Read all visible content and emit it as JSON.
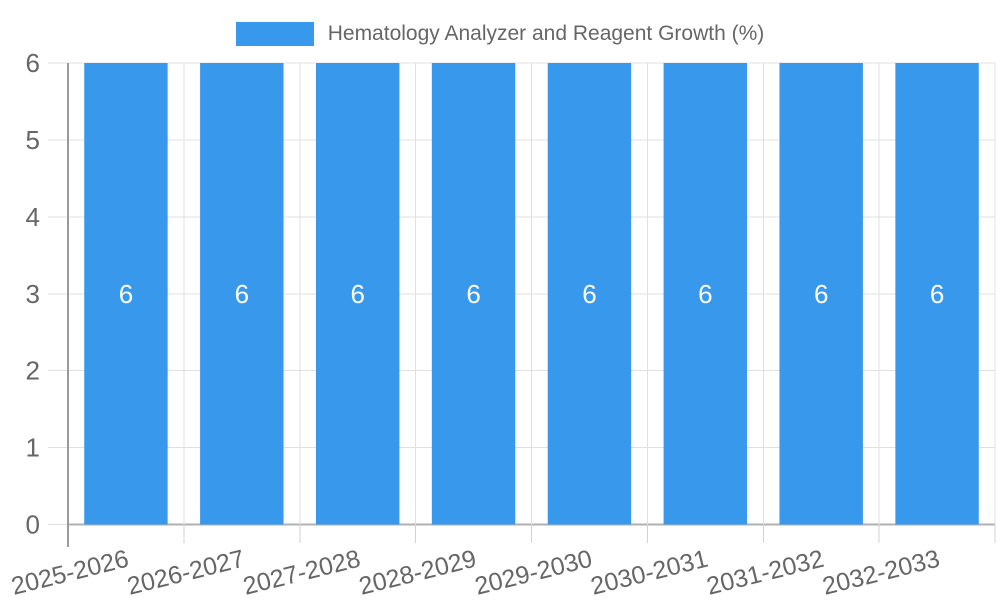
{
  "chart_data": {
    "type": "bar",
    "title": "",
    "legend": {
      "label": "Hematology Analyzer and Reagent Growth (%)",
      "position": "top"
    },
    "categories": [
      "2025-2026",
      "2026-2027",
      "2027-2028",
      "2028-2029",
      "2029-2030",
      "2030-2031",
      "2031-2032",
      "2032-2033"
    ],
    "series": [
      {
        "name": "Hematology Analyzer and Reagent Growth (%)",
        "values": [
          6,
          6,
          6,
          6,
          6,
          6,
          6,
          6
        ]
      }
    ],
    "bar_value_labels": [
      "6",
      "6",
      "6",
      "6",
      "6",
      "6",
      "6",
      "6"
    ],
    "xlabel": "",
    "ylabel": "",
    "ylim": [
      0,
      6
    ],
    "yticks": [
      0,
      1,
      2,
      3,
      4,
      5,
      6
    ],
    "ytick_labels": [
      "0",
      "1",
      "2",
      "3",
      "4",
      "5",
      "6"
    ],
    "grid": true,
    "x_label_angle_deg": -14,
    "legend_position": "top"
  },
  "colors": {
    "background": "#FFFFFF",
    "bar": "#3898EC",
    "grid": "#E0E0E0",
    "axis_line": "#9A9A9A",
    "baseline": "#B0B0B0",
    "tick": "#D2D2D2",
    "label_text": "#666666",
    "bar_label_text": "#FFFFFF"
  }
}
